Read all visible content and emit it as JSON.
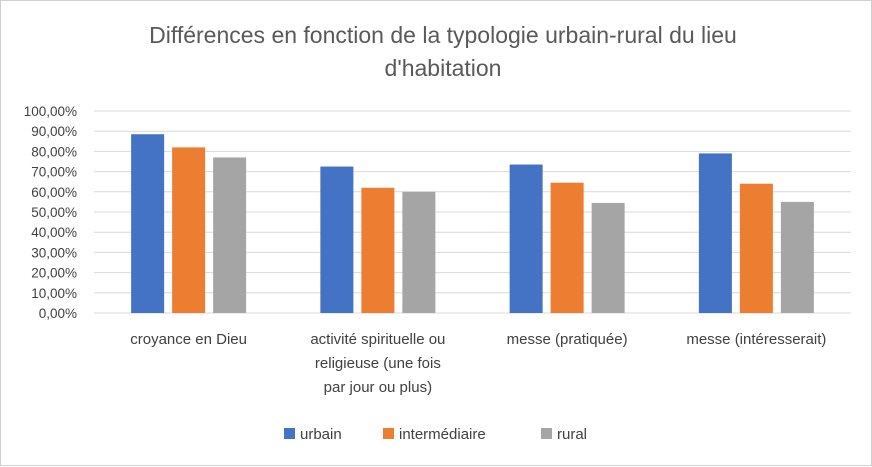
{
  "chart_data": {
    "type": "bar",
    "title": [
      "Différences en fonction de la typologie urbain-rural du lieu",
      "d'habitation"
    ],
    "xlabel": "",
    "ylabel": "",
    "ylim": [
      0,
      100
    ],
    "y_ticks": [
      "0,00%",
      "10,00%",
      "20,00%",
      "30,00%",
      "40,00%",
      "50,00%",
      "60,00%",
      "70,00%",
      "80,00%",
      "90,00%",
      "100,00%"
    ],
    "categories": [
      [
        "croyance en Dieu"
      ],
      [
        "activité spirituelle ou",
        "religieuse (une fois",
        "par jour ou plus)"
      ],
      [
        "messe (pratiquée)"
      ],
      [
        "messe (intéresserait)"
      ]
    ],
    "series": [
      {
        "name": "urbain",
        "color": "#4472c4",
        "values": [
          88.5,
          72.5,
          73.5,
          79.0
        ]
      },
      {
        "name": "intermédiaire",
        "color": "#ed7d31",
        "values": [
          82.0,
          62.0,
          64.5,
          64.0
        ]
      },
      {
        "name": "rural",
        "color": "#a5a5a5",
        "values": [
          77.0,
          60.0,
          54.5,
          55.0
        ]
      }
    ],
    "grid": true,
    "legend_position": "bottom"
  }
}
